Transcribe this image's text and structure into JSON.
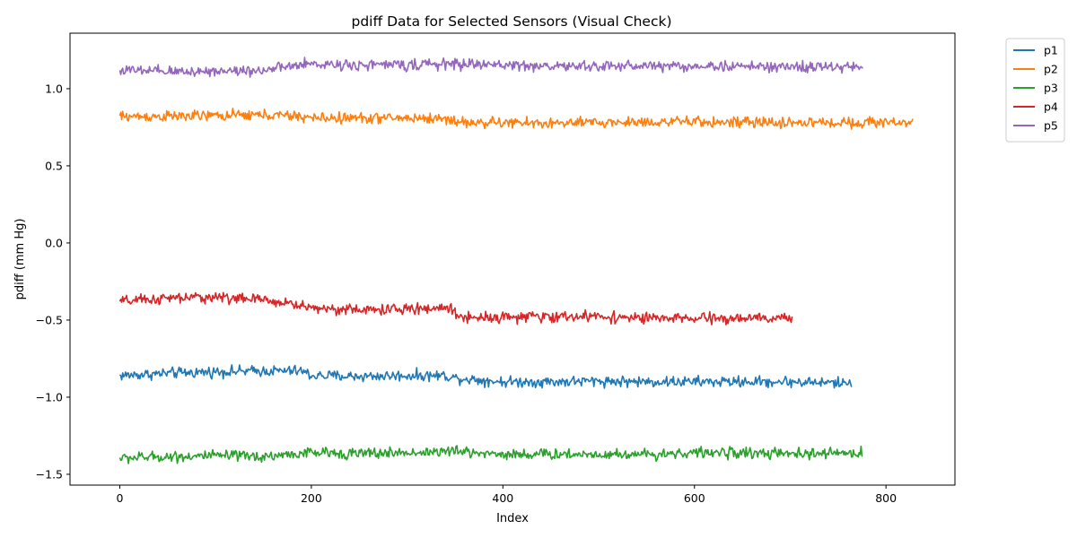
{
  "chart_data": {
    "type": "line",
    "title": "pdiff Data for Selected Sensors (Visual Check)",
    "xlabel": "Index",
    "ylabel": "pdiff (mm Hg)",
    "xlim": [
      -52,
      872
    ],
    "ylim": [
      -1.57,
      1.36
    ],
    "xticks": [
      0,
      200,
      400,
      600,
      800
    ],
    "xtick_labels": [
      "0",
      "200",
      "400",
      "600",
      "800"
    ],
    "yticks": [
      -1.5,
      -1.0,
      -0.5,
      0.0,
      0.5,
      1.0
    ],
    "ytick_labels": [
      "−1.5",
      "−1.0",
      "−0.5",
      "0.0",
      "0.5",
      "1.0"
    ],
    "grid": false,
    "legend_position": "outside-top-right",
    "series": [
      {
        "name": "p1",
        "color": "#1f77b4",
        "noise_amplitude": 0.025,
        "x": [
          0,
          50,
          100,
          150,
          190,
          200,
          250,
          300,
          340,
          350,
          400,
          450,
          500,
          550,
          600,
          650,
          700,
          764
        ],
        "y": [
          -0.86,
          -0.845,
          -0.835,
          -0.83,
          -0.83,
          -0.86,
          -0.865,
          -0.86,
          -0.86,
          -0.875,
          -0.9,
          -0.9,
          -0.895,
          -0.9,
          -0.9,
          -0.9,
          -0.9,
          -0.91
        ]
      },
      {
        "name": "p2",
        "color": "#ff7f0e",
        "noise_amplitude": 0.025,
        "x": [
          0,
          50,
          100,
          150,
          190,
          200,
          250,
          300,
          340,
          360,
          400,
          450,
          500,
          550,
          600,
          650,
          700,
          750,
          828
        ],
        "y": [
          0.82,
          0.82,
          0.825,
          0.83,
          0.82,
          0.81,
          0.81,
          0.81,
          0.805,
          0.78,
          0.78,
          0.775,
          0.78,
          0.785,
          0.785,
          0.78,
          0.78,
          0.78,
          0.785
        ]
      },
      {
        "name": "p3",
        "color": "#2ca02c",
        "noise_amplitude": 0.025,
        "x": [
          0,
          50,
          100,
          150,
          200,
          250,
          300,
          350,
          400,
          450,
          500,
          550,
          600,
          650,
          700,
          775
        ],
        "y": [
          -1.395,
          -1.385,
          -1.38,
          -1.385,
          -1.36,
          -1.365,
          -1.36,
          -1.35,
          -1.37,
          -1.37,
          -1.37,
          -1.37,
          -1.36,
          -1.36,
          -1.37,
          -1.36
        ]
      },
      {
        "name": "p4",
        "color": "#d62728",
        "noise_amplitude": 0.025,
        "x": [
          0,
          50,
          100,
          150,
          175,
          200,
          250,
          300,
          345,
          355,
          400,
          450,
          500,
          550,
          600,
          650,
          702
        ],
        "y": [
          -0.38,
          -0.36,
          -0.35,
          -0.37,
          -0.39,
          -0.42,
          -0.435,
          -0.43,
          -0.42,
          -0.48,
          -0.48,
          -0.48,
          -0.475,
          -0.49,
          -0.49,
          -0.49,
          -0.49
        ]
      },
      {
        "name": "p5",
        "color": "#9467bd",
        "noise_amplitude": 0.025,
        "x": [
          0,
          50,
          100,
          150,
          180,
          200,
          250,
          300,
          350,
          400,
          450,
          500,
          550,
          600,
          650,
          700,
          776
        ],
        "y": [
          1.12,
          1.11,
          1.115,
          1.12,
          1.145,
          1.16,
          1.155,
          1.155,
          1.16,
          1.155,
          1.145,
          1.145,
          1.15,
          1.145,
          1.145,
          1.14,
          1.14
        ]
      }
    ]
  }
}
